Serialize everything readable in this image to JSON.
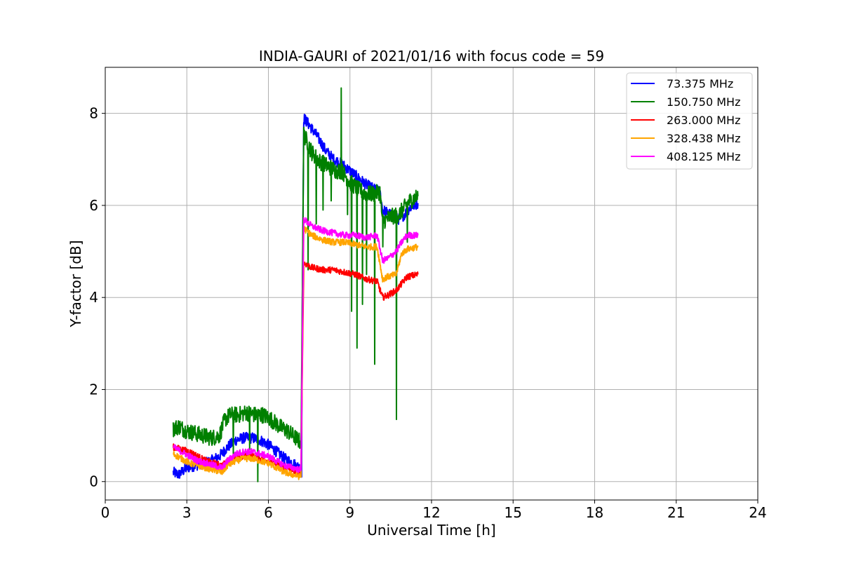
{
  "chart_data": {
    "type": "line",
    "title": "INDIA-GAURI of 2021/01/16 with focus code = 59",
    "xlabel": "Universal Time [h]",
    "ylabel": "Y-factor [dB]",
    "xlim": [
      0,
      24
    ],
    "ylim": [
      -0.4,
      9.0
    ],
    "xticks": [
      0,
      3,
      6,
      9,
      12,
      15,
      18,
      21,
      24
    ],
    "yticks": [
      0,
      2,
      4,
      6,
      8
    ],
    "grid": true,
    "legend_position": "top-right",
    "series": [
      {
        "name": " 73.375 MHz",
        "color": "#0000ff",
        "noise": 0.12,
        "x": [
          2.5,
          2.7,
          3.0,
          3.3,
          3.6,
          3.9,
          4.2,
          4.5,
          4.8,
          5.1,
          5.4,
          5.7,
          6.0,
          6.3,
          6.6,
          6.9,
          7.15,
          7.22,
          7.25,
          7.3,
          7.5,
          7.8,
          8.1,
          8.4,
          8.7,
          9.0,
          9.3,
          9.6,
          9.9,
          10.1,
          10.2,
          10.5,
          10.8,
          11.0,
          11.2,
          11.5
        ],
        "y": [
          0.2,
          0.15,
          0.3,
          0.35,
          0.4,
          0.45,
          0.55,
          0.75,
          0.9,
          0.95,
          0.95,
          0.9,
          0.8,
          0.65,
          0.5,
          0.4,
          0.3,
          0.1,
          4.0,
          7.9,
          7.75,
          7.5,
          7.2,
          7.0,
          6.9,
          6.75,
          6.6,
          6.45,
          6.35,
          6.3,
          5.9,
          5.8,
          5.7,
          5.8,
          5.95,
          6.05
        ]
      },
      {
        "name": "150.750 MHz",
        "color": "#008000",
        "noise": 0.18,
        "x": [
          2.5,
          2.7,
          3.0,
          3.3,
          3.6,
          3.9,
          4.2,
          4.4,
          4.6,
          4.9,
          5.2,
          5.5,
          5.8,
          6.1,
          6.4,
          6.7,
          7.0,
          7.2,
          7.25,
          7.3,
          7.6,
          7.9,
          8.2,
          8.5,
          8.7,
          9.0,
          9.3,
          9.6,
          9.9,
          10.1,
          10.2,
          10.5,
          10.8,
          11.0,
          11.2,
          11.5
        ],
        "y": [
          1.15,
          1.2,
          1.1,
          1.05,
          1.0,
          0.95,
          1.0,
          1.35,
          1.45,
          1.45,
          1.5,
          1.45,
          1.45,
          1.35,
          1.2,
          1.1,
          0.95,
          0.85,
          4.0,
          7.55,
          7.15,
          6.95,
          6.85,
          6.75,
          6.75,
          6.5,
          6.35,
          6.25,
          6.25,
          6.3,
          5.65,
          5.75,
          5.8,
          5.95,
          6.1,
          6.2
        ],
        "spikes": [
          [
            7.45,
            4.6
          ],
          [
            7.75,
            5.6
          ],
          [
            8.0,
            5.9
          ],
          [
            8.3,
            6.1
          ],
          [
            8.67,
            8.55
          ],
          [
            8.9,
            5.8
          ],
          [
            9.05,
            3.7
          ],
          [
            9.25,
            2.9
          ],
          [
            9.45,
            3.85
          ],
          [
            9.6,
            4.5
          ],
          [
            9.9,
            2.55
          ],
          [
            10.2,
            5.1
          ],
          [
            10.7,
            1.35
          ],
          [
            11.1,
            5.2
          ],
          [
            4.7,
            0.6
          ],
          [
            5.3,
            0.7
          ],
          [
            5.6,
            0.0
          ]
        ]
      },
      {
        "name": "263.000 MHz",
        "color": "#ff0000",
        "noise": 0.07,
        "x": [
          2.5,
          2.8,
          3.1,
          3.4,
          3.7,
          4.0,
          4.3,
          4.5,
          4.8,
          5.1,
          5.4,
          5.7,
          6.0,
          6.3,
          6.6,
          6.9,
          7.2,
          7.25,
          7.3,
          7.6,
          8.0,
          8.4,
          8.8,
          9.2,
          9.6,
          10.0,
          10.2,
          10.4,
          10.7,
          10.9,
          11.1,
          11.5
        ],
        "y": [
          0.75,
          0.7,
          0.65,
          0.55,
          0.45,
          0.4,
          0.35,
          0.45,
          0.5,
          0.55,
          0.55,
          0.5,
          0.45,
          0.4,
          0.3,
          0.25,
          0.2,
          2.5,
          4.75,
          4.65,
          4.6,
          4.6,
          4.55,
          4.5,
          4.4,
          4.35,
          4.0,
          4.05,
          4.15,
          4.3,
          4.45,
          4.5
        ]
      },
      {
        "name": "328.438 MHz",
        "color": "#ffa500",
        "noise": 0.07,
        "x": [
          2.5,
          2.8,
          3.1,
          3.4,
          3.7,
          4.0,
          4.3,
          4.5,
          4.8,
          5.1,
          5.4,
          5.7,
          6.0,
          6.3,
          6.6,
          6.9,
          7.2,
          7.25,
          7.3,
          7.6,
          8.0,
          8.4,
          8.8,
          9.2,
          9.6,
          10.0,
          10.2,
          10.4,
          10.7,
          10.9,
          11.1,
          11.5
        ],
        "y": [
          0.6,
          0.5,
          0.4,
          0.35,
          0.3,
          0.25,
          0.2,
          0.35,
          0.45,
          0.5,
          0.5,
          0.45,
          0.4,
          0.3,
          0.2,
          0.15,
          0.1,
          2.8,
          5.5,
          5.35,
          5.25,
          5.2,
          5.2,
          5.15,
          5.1,
          5.1,
          4.4,
          4.45,
          4.5,
          4.95,
          5.05,
          5.1
        ]
      },
      {
        "name": "408.125 MHz",
        "color": "#ff00ff",
        "noise": 0.07,
        "x": [
          2.5,
          2.8,
          3.1,
          3.4,
          3.7,
          4.0,
          4.3,
          4.5,
          4.8,
          5.1,
          5.4,
          5.7,
          6.0,
          6.3,
          6.6,
          6.9,
          7.2,
          7.25,
          7.3,
          7.6,
          8.0,
          8.4,
          8.8,
          9.2,
          9.6,
          10.0,
          10.2,
          10.4,
          10.7,
          10.9,
          11.1,
          11.5
        ],
        "y": [
          0.75,
          0.65,
          0.55,
          0.45,
          0.4,
          0.35,
          0.3,
          0.45,
          0.6,
          0.65,
          0.65,
          0.6,
          0.55,
          0.45,
          0.35,
          0.3,
          0.25,
          3.0,
          5.7,
          5.55,
          5.45,
          5.4,
          5.35,
          5.35,
          5.3,
          5.35,
          4.8,
          4.85,
          5.0,
          5.2,
          5.35,
          5.35
        ]
      }
    ]
  }
}
